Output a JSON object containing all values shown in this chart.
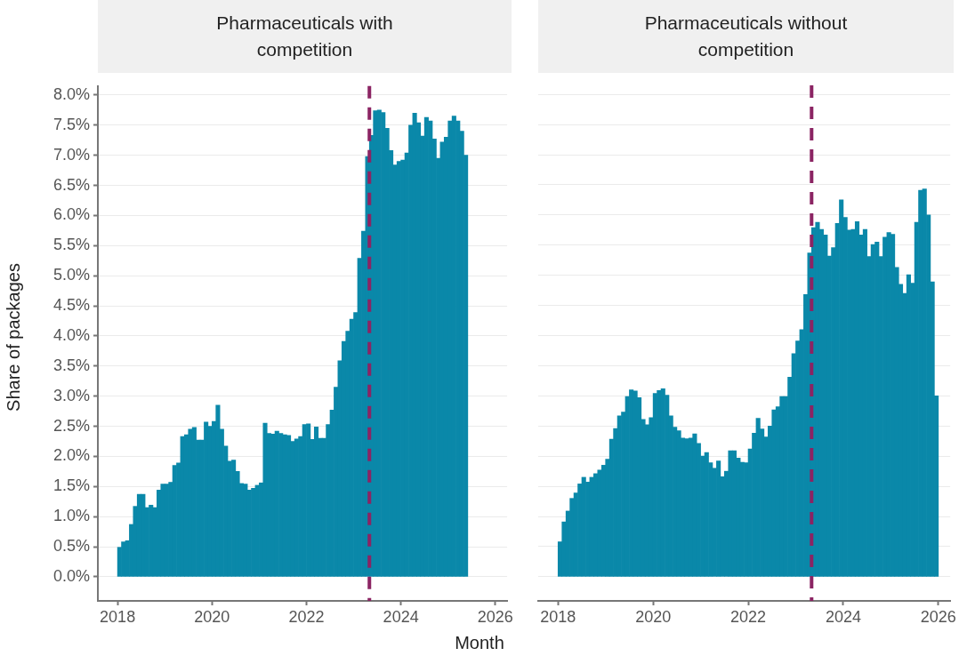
{
  "chart_data": [
    {
      "type": "bar",
      "title": "Pharmaceuticals with competition",
      "ylabel": "Share of packages",
      "xlabel": "Month",
      "color": "#0a88a9",
      "grid": "y",
      "x": [
        "2018-01",
        "2018-02",
        "2018-03",
        "2018-04",
        "2018-05",
        "2018-06",
        "2018-07",
        "2018-08",
        "2018-09",
        "2018-10",
        "2018-11",
        "2018-12",
        "2019-01",
        "2019-02",
        "2019-03",
        "2019-04",
        "2019-05",
        "2019-06",
        "2019-07",
        "2019-08",
        "2019-09",
        "2019-10",
        "2019-11",
        "2019-12",
        "2020-01",
        "2020-02",
        "2020-03",
        "2020-04",
        "2020-05",
        "2020-06",
        "2020-07",
        "2020-08",
        "2020-09",
        "2020-10",
        "2020-11",
        "2020-12",
        "2021-01",
        "2021-02",
        "2021-03",
        "2021-04",
        "2021-05",
        "2021-06",
        "2021-07",
        "2021-08",
        "2021-09",
        "2021-10",
        "2021-11",
        "2021-12",
        "2022-01",
        "2022-02",
        "2022-03",
        "2022-04",
        "2022-05",
        "2022-06",
        "2022-07",
        "2022-08",
        "2022-09",
        "2022-10",
        "2022-11",
        "2022-12",
        "2023-01",
        "2023-02",
        "2023-03",
        "2023-04",
        "2023-05",
        "2023-06",
        "2023-07",
        "2023-08",
        "2023-09",
        "2023-10",
        "2023-11",
        "2023-12",
        "2024-01",
        "2024-02",
        "2024-03",
        "2024-04",
        "2024-05",
        "2024-06",
        "2024-07",
        "2024-08",
        "2024-09",
        "2024-10",
        "2024-11",
        "2024-12",
        "2025-01",
        "2025-02",
        "2025-03",
        "2025-04",
        "2025-05"
      ],
      "values": [
        0.49,
        0.58,
        0.6,
        0.87,
        1.17,
        1.37,
        1.37,
        1.15,
        1.19,
        1.15,
        1.44,
        1.54,
        1.54,
        1.57,
        1.85,
        1.89,
        2.33,
        2.36,
        2.45,
        2.48,
        2.27,
        2.27,
        2.57,
        2.5,
        2.58,
        2.85,
        2.45,
        2.17,
        1.92,
        1.94,
        1.75,
        1.55,
        1.54,
        1.44,
        1.47,
        1.52,
        1.56,
        2.55,
        2.38,
        2.37,
        2.42,
        2.38,
        2.36,
        2.35,
        2.25,
        2.29,
        2.33,
        2.53,
        2.54,
        2.28,
        2.49,
        2.3,
        2.3,
        2.53,
        2.77,
        3.15,
        3.59,
        3.91,
        4.08,
        4.28,
        4.39,
        5.29,
        5.74,
        6.98,
        7.33,
        7.74,
        7.75,
        7.71,
        7.45,
        7.08,
        6.84,
        6.9,
        6.92,
        7.04,
        7.5,
        7.7,
        7.54,
        7.32,
        7.63,
        7.57,
        7.27,
        6.95,
        7.22,
        7.3,
        7.57,
        7.65,
        7.57,
        7.4,
        7.0
      ],
      "xlim": [
        "2017-08",
        "2026-04"
      ],
      "xticks": [
        "2018",
        "2020",
        "2022",
        "2024",
        "2026"
      ],
      "ylim": [
        -0.4,
        8.15
      ],
      "yticks": [
        {
          "value": 0,
          "label": "0.0%"
        },
        {
          "value": 0.5,
          "label": "0.5%"
        },
        {
          "value": 1,
          "label": "1.0%"
        },
        {
          "value": 1.5,
          "label": "1.5%"
        },
        {
          "value": 2,
          "label": "2.0%"
        },
        {
          "value": 2.5,
          "label": "2.5%"
        },
        {
          "value": 3,
          "label": "3.0%"
        },
        {
          "value": 3.5,
          "label": "3.5%"
        },
        {
          "value": 4,
          "label": "4.0%"
        },
        {
          "value": 4.5,
          "label": "4.5%"
        },
        {
          "value": 5,
          "label": "5.0%"
        },
        {
          "value": 5.5,
          "label": "5.5%"
        },
        {
          "value": 6,
          "label": "6.0%"
        },
        {
          "value": 6.5,
          "label": "6.5%"
        },
        {
          "value": 7,
          "label": "7.0%"
        },
        {
          "value": 7.5,
          "label": "7.5%"
        },
        {
          "value": 8,
          "label": "8.0%"
        }
      ],
      "ref_lines": [
        {
          "axis": "x",
          "value": "2023-05",
          "color": "#8b2463",
          "line_style": "dashed"
        }
      ]
    },
    {
      "type": "bar",
      "title": "Pharmaceuticals without competition",
      "color": "#0a88a9",
      "grid": "y",
      "tick_labels": "x",
      "x": [
        "2018-01",
        "2018-02",
        "2018-03",
        "2018-04",
        "2018-05",
        "2018-06",
        "2018-07",
        "2018-08",
        "2018-09",
        "2018-10",
        "2018-11",
        "2018-12",
        "2019-01",
        "2019-02",
        "2019-03",
        "2019-04",
        "2019-05",
        "2019-06",
        "2019-07",
        "2019-08",
        "2019-09",
        "2019-10",
        "2019-11",
        "2019-12",
        "2020-01",
        "2020-02",
        "2020-03",
        "2020-04",
        "2020-05",
        "2020-06",
        "2020-07",
        "2020-08",
        "2020-09",
        "2020-10",
        "2020-11",
        "2020-12",
        "2021-01",
        "2021-02",
        "2021-03",
        "2021-04",
        "2021-05",
        "2021-06",
        "2021-07",
        "2021-08",
        "2021-09",
        "2021-10",
        "2021-11",
        "2021-12",
        "2022-01",
        "2022-02",
        "2022-03",
        "2022-04",
        "2022-05",
        "2022-06",
        "2022-07",
        "2022-08",
        "2022-09",
        "2022-10",
        "2022-11",
        "2022-12",
        "2023-01",
        "2023-02",
        "2023-03",
        "2023-04",
        "2023-05",
        "2023-06",
        "2023-07",
        "2023-08",
        "2023-09",
        "2023-10",
        "2023-11",
        "2023-12",
        "2024-01",
        "2024-02",
        "2024-03",
        "2024-04",
        "2024-05",
        "2024-06",
        "2024-07",
        "2024-08",
        "2024-09",
        "2024-10",
        "2024-11",
        "2024-12",
        "2025-01",
        "2025-02",
        "2025-03",
        "2025-04",
        "2025-05",
        "2025-06",
        "2025-07",
        "2025-08",
        "2025-09",
        "2025-10",
        "2025-11",
        "2025-12"
      ],
      "values": [
        0.58,
        0.91,
        1.09,
        1.3,
        1.39,
        1.54,
        1.65,
        1.57,
        1.65,
        1.71,
        1.77,
        1.85,
        1.95,
        2.28,
        2.46,
        2.67,
        2.73,
        2.99,
        3.1,
        3.08,
        2.97,
        2.61,
        2.52,
        2.64,
        3.04,
        3.09,
        3.12,
        3.01,
        2.67,
        2.48,
        2.42,
        2.3,
        2.29,
        2.3,
        2.37,
        2.21,
        2.0,
        2.06,
        1.89,
        1.8,
        1.92,
        1.66,
        1.75,
        2.09,
        2.09,
        1.97,
        1.9,
        1.89,
        2.12,
        2.38,
        2.63,
        2.45,
        2.32,
        2.5,
        2.77,
        2.82,
        2.99,
        2.99,
        3.31,
        3.7,
        3.91,
        4.1,
        4.68,
        5.37,
        5.79,
        5.88,
        5.76,
        5.67,
        5.32,
        5.46,
        5.86,
        6.25,
        5.96,
        5.75,
        5.76,
        5.89,
        5.67,
        5.76,
        5.31,
        5.51,
        5.55,
        5.31,
        5.63,
        5.71,
        5.68,
        5.13,
        4.85,
        4.7,
        5.01,
        4.87,
        5.88,
        6.41,
        6.43,
        6.0,
        4.89,
        3.0
      ],
      "xlim": [
        "2017-08",
        "2026-04"
      ],
      "xticks": [
        "2018",
        "2020",
        "2022",
        "2024",
        "2026"
      ],
      "ylim": [
        -0.4,
        8.15
      ],
      "yticks": [
        0,
        0.5,
        1,
        1.5,
        2,
        2.5,
        3,
        3.5,
        4,
        4.5,
        5,
        5.5,
        6,
        6.5,
        7,
        7.5,
        8
      ],
      "ref_lines": [
        {
          "axis": "x",
          "value": "2023-05",
          "color": "#8b2463",
          "line_style": "dashed"
        }
      ]
    }
  ]
}
